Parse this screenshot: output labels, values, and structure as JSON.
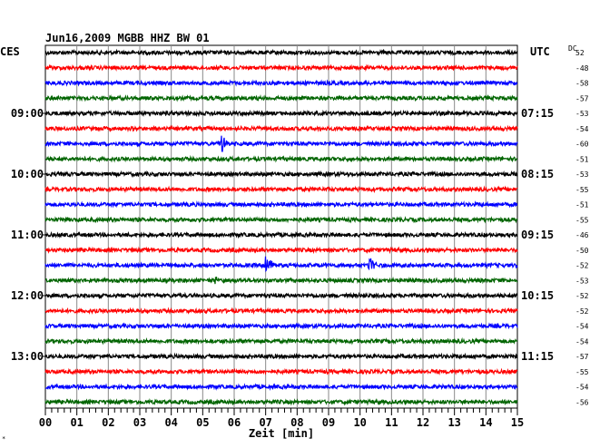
{
  "header": {
    "title": "Jun16,2009   MGBB HHZ BW 01",
    "left_zone": "CES",
    "right_zone": "UTC",
    "dc_label": "DC"
  },
  "chart_data": {
    "type": "line",
    "title": "Jun16,2009   MGBB HHZ BW 01",
    "xlabel": "Zeit [min]",
    "xlim": [
      0,
      15
    ],
    "x_ticks": [
      "00",
      "01",
      "02",
      "03",
      "04",
      "05",
      "06",
      "07",
      "08",
      "09",
      "10",
      "11",
      "12",
      "13",
      "14",
      "15"
    ],
    "left_time_labels": [
      "09:00",
      "10:00",
      "11:00",
      "12:00",
      "13:00"
    ],
    "right_time_labels": [
      "07:15",
      "08:15",
      "09:15",
      "10:15",
      "11:15"
    ],
    "trace_colors": [
      "#000000",
      "#ff0000",
      "#0000ff",
      "#006400"
    ],
    "trace_count": 24,
    "dc_offsets": [
      "52",
      "-48",
      "-58",
      "-57",
      "-53",
      "-54",
      "-60",
      "-51",
      "-53",
      "-55",
      "-51",
      "-55",
      "-46",
      "-50",
      "-52",
      "-53",
      "-52",
      "-52",
      "-54",
      "-54",
      "-57",
      "-55",
      "-54",
      "-56"
    ],
    "events": [
      {
        "trace": 6,
        "minute": 5.6,
        "amplitude": 0.75
      },
      {
        "trace": 14,
        "minute": 7.0,
        "amplitude": 1.0
      },
      {
        "trace": 14,
        "minute": 10.3,
        "amplitude": 0.8
      },
      {
        "trace": 15,
        "minute": 5.4,
        "amplitude": 0.3
      }
    ],
    "grid": true
  }
}
